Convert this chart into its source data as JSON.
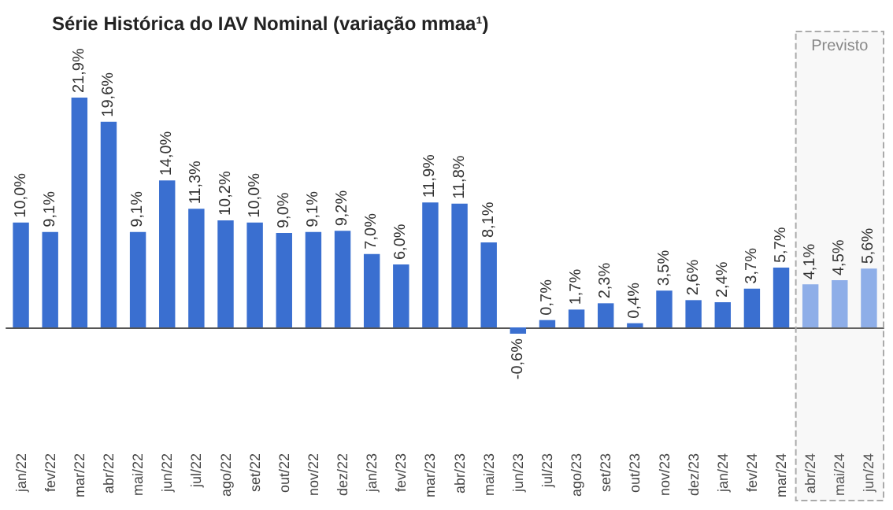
{
  "chart_data": {
    "type": "bar",
    "title": "Série Histórica do IAV Nominal (variação mmaa¹)",
    "categories": [
      "jan/22",
      "fev/22",
      "mar/22",
      "abr/22",
      "mai/22",
      "jun/22",
      "jul/22",
      "ago/22",
      "set/22",
      "out/22",
      "nov/22",
      "dez/22",
      "jan/23",
      "fev/23",
      "mar/23",
      "abr/23",
      "mai/23",
      "jun/23",
      "jul/23",
      "ago/23",
      "set/23",
      "out/23",
      "nov/23",
      "dez/23",
      "jan/24",
      "fev/24",
      "mar/24",
      "abr/24",
      "mai/24",
      "jun/24"
    ],
    "values": [
      10.0,
      9.1,
      21.9,
      19.6,
      9.1,
      14.0,
      11.3,
      10.2,
      10.0,
      9.0,
      9.1,
      9.2,
      7.0,
      6.0,
      11.9,
      11.8,
      8.1,
      -0.6,
      0.7,
      1.7,
      2.3,
      0.4,
      3.5,
      2.6,
      2.4,
      3.7,
      5.7,
      4.1,
      4.5,
      5.6
    ],
    "value_labels": [
      "10,0%",
      "9,1%",
      "21,9%",
      "19,6%",
      "9,1%",
      "14,0%",
      "11,3%",
      "10,2%",
      "10,0%",
      "9,0%",
      "9,1%",
      "9,2%",
      "7,0%",
      "6,0%",
      "11,9%",
      "11,8%",
      "8,1%",
      "-0,6%",
      "0,7%",
      "1,7%",
      "2,3%",
      "0,4%",
      "3,5%",
      "2,6%",
      "2,4%",
      "3,7%",
      "5,7%",
      "4,1%",
      "4,5%",
      "5,6%"
    ],
    "colors": [
      "#3a6fd0",
      "#3a6fd0",
      "#3a6fd0",
      "#3a6fd0",
      "#3a6fd0",
      "#3a6fd0",
      "#3a6fd0",
      "#3a6fd0",
      "#3a6fd0",
      "#3a6fd0",
      "#3a6fd0",
      "#3a6fd0",
      "#3a6fd0",
      "#3a6fd0",
      "#3a6fd0",
      "#3a6fd0",
      "#3a6fd0",
      "#3a6fd0",
      "#3a6fd0",
      "#3a6fd0",
      "#3a6fd0",
      "#3a6fd0",
      "#3a6fd0",
      "#3a6fd0",
      "#3a6fd0",
      "#3a6fd0",
      "#3a6fd0",
      "#8eaee8",
      "#8eaee8",
      "#8eaee8"
    ],
    "bands": [
      {
        "axis": "x",
        "from": "abr/24",
        "to": "jun/24",
        "label": "Previsto"
      }
    ],
    "grid": false
  }
}
